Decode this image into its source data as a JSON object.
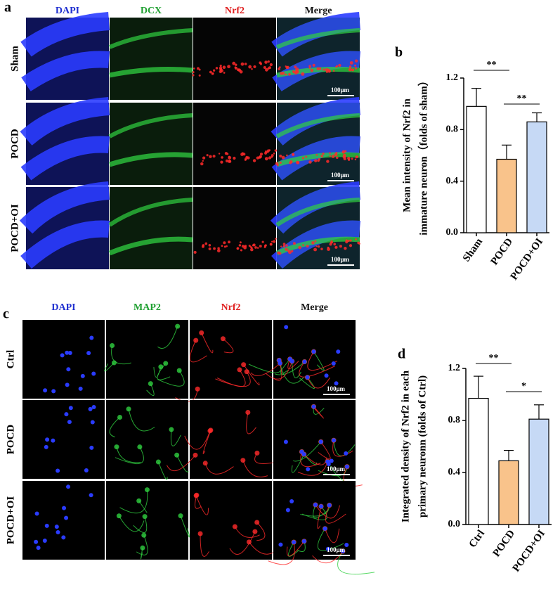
{
  "panel_a": {
    "letter": "a",
    "columns": [
      "DAPI",
      "DCX",
      "Nrf2",
      "Merge"
    ],
    "rows": [
      "Sham",
      "POCD",
      "POCD+OI"
    ],
    "scale_bar": "100μm"
  },
  "panel_c": {
    "letter": "c",
    "columns": [
      "DAPI",
      "MAP2",
      "Nrf2",
      "Merge"
    ],
    "rows": [
      "Ctrl",
      "POCD",
      "POCD+OI"
    ],
    "scale_bar": "100μm"
  },
  "chart_data": [
    {
      "type": "bar",
      "letter": "b",
      "ylabel": [
        "Mean intensity of Nrf2 in",
        "immature neuron（folds of sham）"
      ],
      "categories": [
        "Sham",
        "POCD",
        "POCD+OI"
      ],
      "values": [
        0.98,
        0.57,
        0.86
      ],
      "errors": [
        0.14,
        0.11,
        0.07
      ],
      "colors": [
        "#ffffff",
        "#f9c38b",
        "#c6d9f5"
      ],
      "ylim": [
        0,
        1.2
      ],
      "yticks": [
        {
          "value": 0,
          "label": "0.0"
        },
        0.4,
        0.8,
        1.2
      ],
      "annotations": [
        "**",
        "**"
      ]
    },
    {
      "type": "bar",
      "letter": "d",
      "ylabel": [
        "Integrated density of Nrf2 in each",
        "primary neuronn (folds of Ctrl)"
      ],
      "categories": [
        "Ctrl",
        "POCD",
        "POCD+OI"
      ],
      "values": [
        0.97,
        0.49,
        0.81
      ],
      "errors": [
        0.17,
        0.08,
        0.11
      ],
      "colors": [
        "#ffffff",
        "#f9c38b",
        "#c6d9f5"
      ],
      "ylim": [
        0,
        1.2
      ],
      "yticks": [
        {
          "value": 0,
          "label": "0.0"
        },
        0.4,
        0.8,
        1.2
      ],
      "annotations": [
        "**",
        "*"
      ]
    }
  ]
}
